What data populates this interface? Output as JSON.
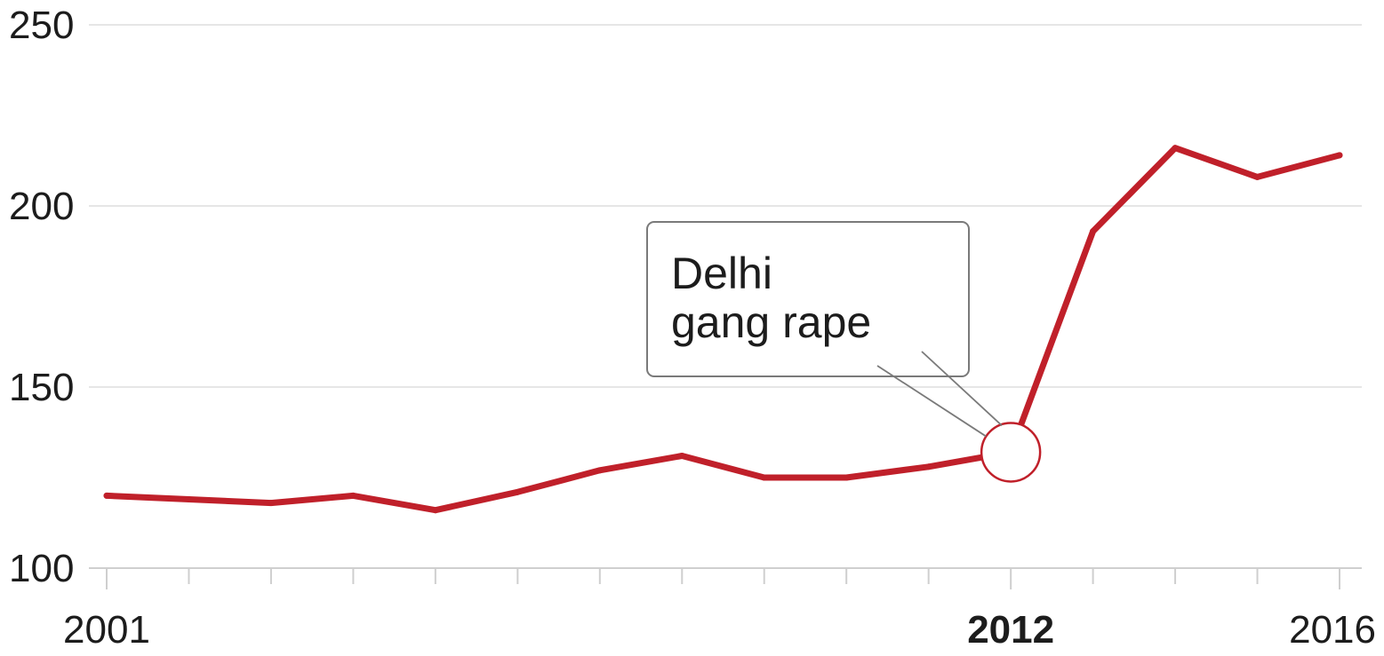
{
  "chart_data": {
    "type": "line",
    "title": "",
    "xlabel": "",
    "ylabel": "",
    "x": [
      2001,
      2002,
      2003,
      2004,
      2005,
      2006,
      2007,
      2008,
      2009,
      2010,
      2011,
      2012,
      2013,
      2014,
      2015,
      2016
    ],
    "series": [
      {
        "values": [
          120,
          119,
          118,
          120,
          116,
          121,
          127,
          131,
          125,
          125,
          128,
          132,
          193,
          216,
          208,
          214
        ]
      }
    ],
    "xlim": [
      2001,
      2016
    ],
    "ylim": [
      100,
      250
    ],
    "y_ticks": [
      100,
      150,
      200,
      250
    ],
    "y_tick_labels": [
      "100",
      "150",
      "200",
      "250"
    ],
    "x_tick_labels": [
      {
        "value": 2001,
        "label": "2001",
        "bold": false
      },
      {
        "value": 2012,
        "label": "2012",
        "bold": true
      },
      {
        "value": 2016,
        "label": "2016",
        "bold": false
      }
    ],
    "grid": true,
    "line_color": "#c0202a",
    "grid_color": "#e6e6e6",
    "axis_color": "#cfcfcf",
    "annotation": {
      "text_lines": [
        "Delhi",
        "gang rape"
      ],
      "x": 2012,
      "y": 132
    }
  }
}
